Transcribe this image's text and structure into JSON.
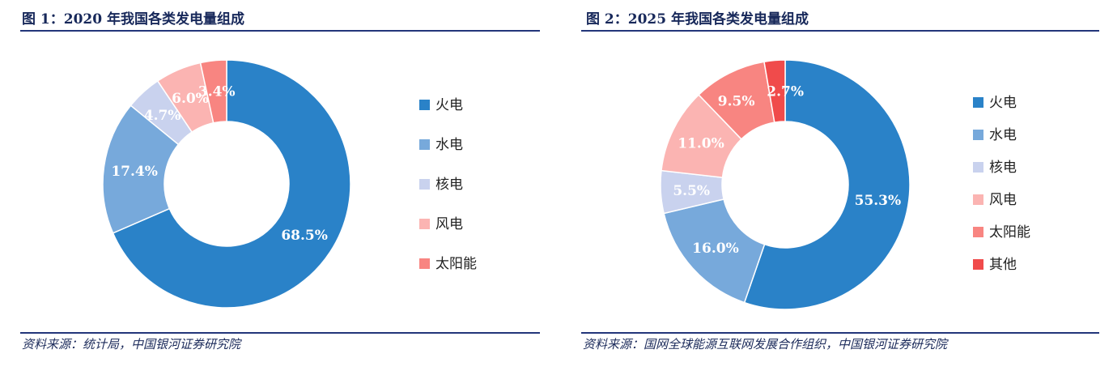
{
  "colors": {
    "火电": "#2a82c8",
    "水电": "#77a9db",
    "核电": "#c9d2ee",
    "风电": "#fbb4b2",
    "太阳能": "#f88581",
    "其他": "#f04b4b"
  },
  "chart_data": [
    {
      "type": "pie",
      "title": "图 1：2020 年我国各类发电量组成",
      "source": "资料来源：统计局，中国银河证券研究院",
      "categories": [
        "火电",
        "水电",
        "核电",
        "风电",
        "太阳能"
      ],
      "values": [
        68.5,
        17.4,
        4.7,
        6.0,
        3.4
      ],
      "labels": [
        "68.5%",
        "17.4%",
        "4.7%",
        "6.0%",
        "3.4%"
      ],
      "unit": "%",
      "donut": true,
      "legend": "right"
    },
    {
      "type": "pie",
      "title": "图 2：2025 年我国各类发电量组成",
      "source": "资料来源：国网全球能源互联网发展合作组织，中国银河证券研究院",
      "categories": [
        "火电",
        "水电",
        "核电",
        "风电",
        "太阳能",
        "其他"
      ],
      "values": [
        55.3,
        16.0,
        5.5,
        11.0,
        9.5,
        2.7
      ],
      "labels": [
        "55.3%",
        "16.0%",
        "5.5%",
        "11.0%",
        "9.5%",
        "2.7%"
      ],
      "unit": "%",
      "donut": true,
      "legend": "right"
    }
  ]
}
